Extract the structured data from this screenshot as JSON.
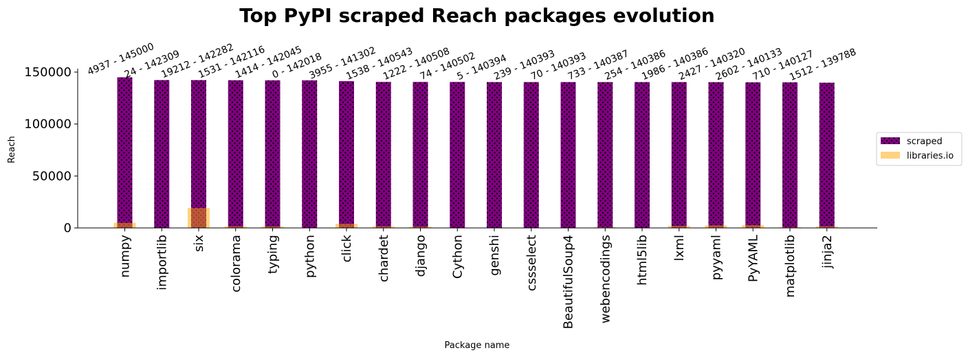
{
  "chart_data": {
    "type": "bar",
    "title": "Top PyPI scraped Reach packages evolution",
    "xlabel": "Package name",
    "ylabel": "Reach",
    "ylim": [
      0,
      150000
    ],
    "yticks": [
      "0",
      "50000",
      "100000",
      "150000"
    ],
    "categories": [
      "numpy",
      "importlib",
      "six",
      "colorama",
      "typing",
      "python",
      "click",
      "chardet",
      "django",
      "Cython",
      "genshi",
      "cssselect",
      "BeautifulSoup4",
      "webencodings",
      "html5lib",
      "lxml",
      "pyyaml",
      "PyYAML",
      "matplotlib",
      "jinja2"
    ],
    "series": [
      {
        "name": "scraped",
        "color": "#800080",
        "pattern": "dots",
        "values": [
          145000,
          142309,
          142282,
          142116,
          142045,
          142018,
          141302,
          140543,
          140508,
          140502,
          140394,
          140393,
          140393,
          140387,
          140386,
          140386,
          140320,
          140133,
          140127,
          139788
        ]
      },
      {
        "name": "libraries.io",
        "color": "#ffa500",
        "opacity": 0.5,
        "values": [
          4937,
          24,
          19212,
          1531,
          1414,
          0,
          3955,
          1538,
          1222,
          74,
          5,
          239,
          70,
          733,
          254,
          1986,
          2427,
          2602,
          710,
          1512
        ]
      }
    ],
    "annotations": [
      "4937 - 145000",
      "24 - 142309",
      "19212 - 142282",
      "1531 - 142116",
      "1414 - 142045",
      "0 - 142018",
      "3955 - 141302",
      "1538 - 140543",
      "1222 - 140508",
      "74 - 140502",
      "5 - 140394",
      "239 - 140393",
      "70 - 140393",
      "733 - 140387",
      "254 - 140386",
      "1986 - 140386",
      "2427 - 140320",
      "2602 - 140133",
      "710 - 140127",
      "1512 - 139788"
    ],
    "legend_position": "right",
    "grid": false
  }
}
